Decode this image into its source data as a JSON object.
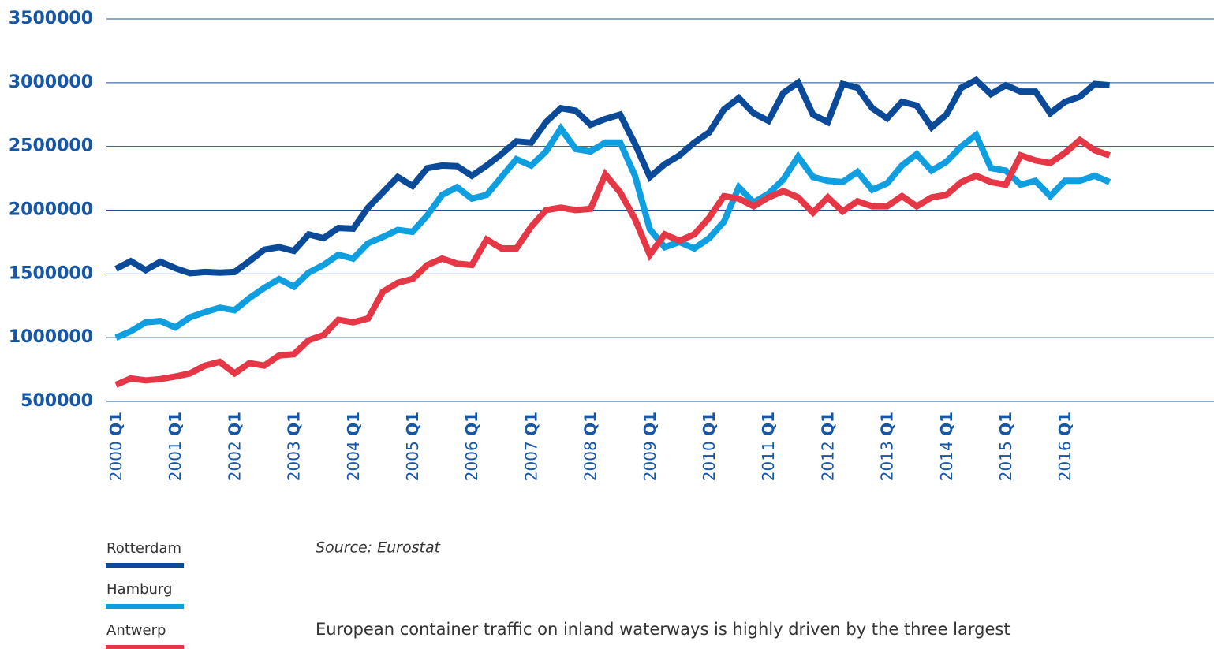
{
  "chart_data": {
    "type": "line",
    "categories": [
      "2000 Q1",
      null,
      null,
      null,
      "2001 Q1",
      null,
      null,
      null,
      "2002 Q1",
      null,
      null,
      null,
      "2003 Q1",
      null,
      null,
      null,
      "2004 Q1",
      null,
      null,
      null,
      "2005 Q1",
      null,
      null,
      null,
      "2006 Q1",
      null,
      null,
      null,
      "2007 Q1",
      null,
      null,
      null,
      "2008 Q1",
      null,
      null,
      null,
      "2009 Q1",
      null,
      null,
      null,
      "2010 Q1",
      null,
      null,
      null,
      "2011 Q1",
      null,
      null,
      null,
      "2012 Q1",
      null,
      null,
      null,
      "2013 Q1",
      null,
      null,
      null,
      "2014 Q1",
      null,
      null,
      null,
      "2015 Q1",
      null,
      null,
      null,
      "2016 Q1",
      null,
      null,
      null
    ],
    "series": [
      {
        "name": "Rotterdam",
        "color": "#0a4a98",
        "values": [
          1540000,
          1600000,
          1530000,
          1595000,
          1545000,
          1505000,
          1515000,
          1510000,
          1515000,
          1600000,
          1690000,
          1710000,
          1680000,
          1810000,
          1780000,
          1860000,
          1855000,
          2020000,
          2140000,
          2260000,
          2190000,
          2330000,
          2350000,
          2345000,
          2270000,
          2350000,
          2440000,
          2540000,
          2530000,
          2690000,
          2800000,
          2780000,
          2670000,
          2715000,
          2750000,
          2520000,
          2260000,
          2360000,
          2430000,
          2530000,
          2610000,
          2790000,
          2880000,
          2760000,
          2700000,
          2920000,
          3000000,
          2750000,
          2690000,
          2990000,
          2960000,
          2800000,
          2720000,
          2850000,
          2820000,
          2650000,
          2750000,
          2960000,
          3020000,
          2910000,
          2980000,
          2930000,
          2930000,
          2760000,
          2850000,
          2890000,
          2990000,
          2980000
        ]
      },
      {
        "name": "Hamburg",
        "color": "#0f9ee0",
        "values": [
          1000000,
          1050000,
          1120000,
          1130000,
          1080000,
          1160000,
          1200000,
          1235000,
          1215000,
          1310000,
          1390000,
          1460000,
          1400000,
          1510000,
          1570000,
          1650000,
          1620000,
          1740000,
          1790000,
          1845000,
          1830000,
          1960000,
          2120000,
          2180000,
          2090000,
          2120000,
          2260000,
          2400000,
          2350000,
          2460000,
          2640000,
          2480000,
          2460000,
          2530000,
          2530000,
          2270000,
          1850000,
          1710000,
          1750000,
          1700000,
          1780000,
          1910000,
          2180000,
          2060000,
          2130000,
          2240000,
          2420000,
          2260000,
          2230000,
          2220000,
          2300000,
          2160000,
          2210000,
          2350000,
          2440000,
          2310000,
          2380000,
          2500000,
          2590000,
          2330000,
          2310000,
          2200000,
          2230000,
          2110000,
          2230000,
          2230000,
          2270000,
          2220000
        ]
      },
      {
        "name": "Antwerp",
        "color": "#e63746",
        "values": [
          630000,
          680000,
          665000,
          675000,
          695000,
          720000,
          780000,
          810000,
          720000,
          800000,
          780000,
          860000,
          870000,
          980000,
          1020000,
          1140000,
          1120000,
          1150000,
          1360000,
          1430000,
          1460000,
          1570000,
          1620000,
          1580000,
          1570000,
          1770000,
          1700000,
          1700000,
          1870000,
          2000000,
          2020000,
          2000000,
          2010000,
          2280000,
          2140000,
          1930000,
          1650000,
          1810000,
          1760000,
          1810000,
          1940000,
          2110000,
          2090000,
          2030000,
          2100000,
          2150000,
          2100000,
          1980000,
          2100000,
          1990000,
          2070000,
          2030000,
          2030000,
          2110000,
          2030000,
          2100000,
          2120000,
          2220000,
          2270000,
          2220000,
          2200000,
          2430000,
          2390000,
          2370000,
          2450000,
          2550000,
          2470000,
          2430000
        ]
      }
    ],
    "ylim": [
      500000,
      3500000
    ],
    "yticks": [
      500000,
      1000000,
      1500000,
      2000000,
      2500000,
      3000000,
      3500000
    ],
    "grid": true,
    "source": "Source: Eurostat",
    "caption": "European container traffic on inland waterways is highly driven by the three largest"
  }
}
